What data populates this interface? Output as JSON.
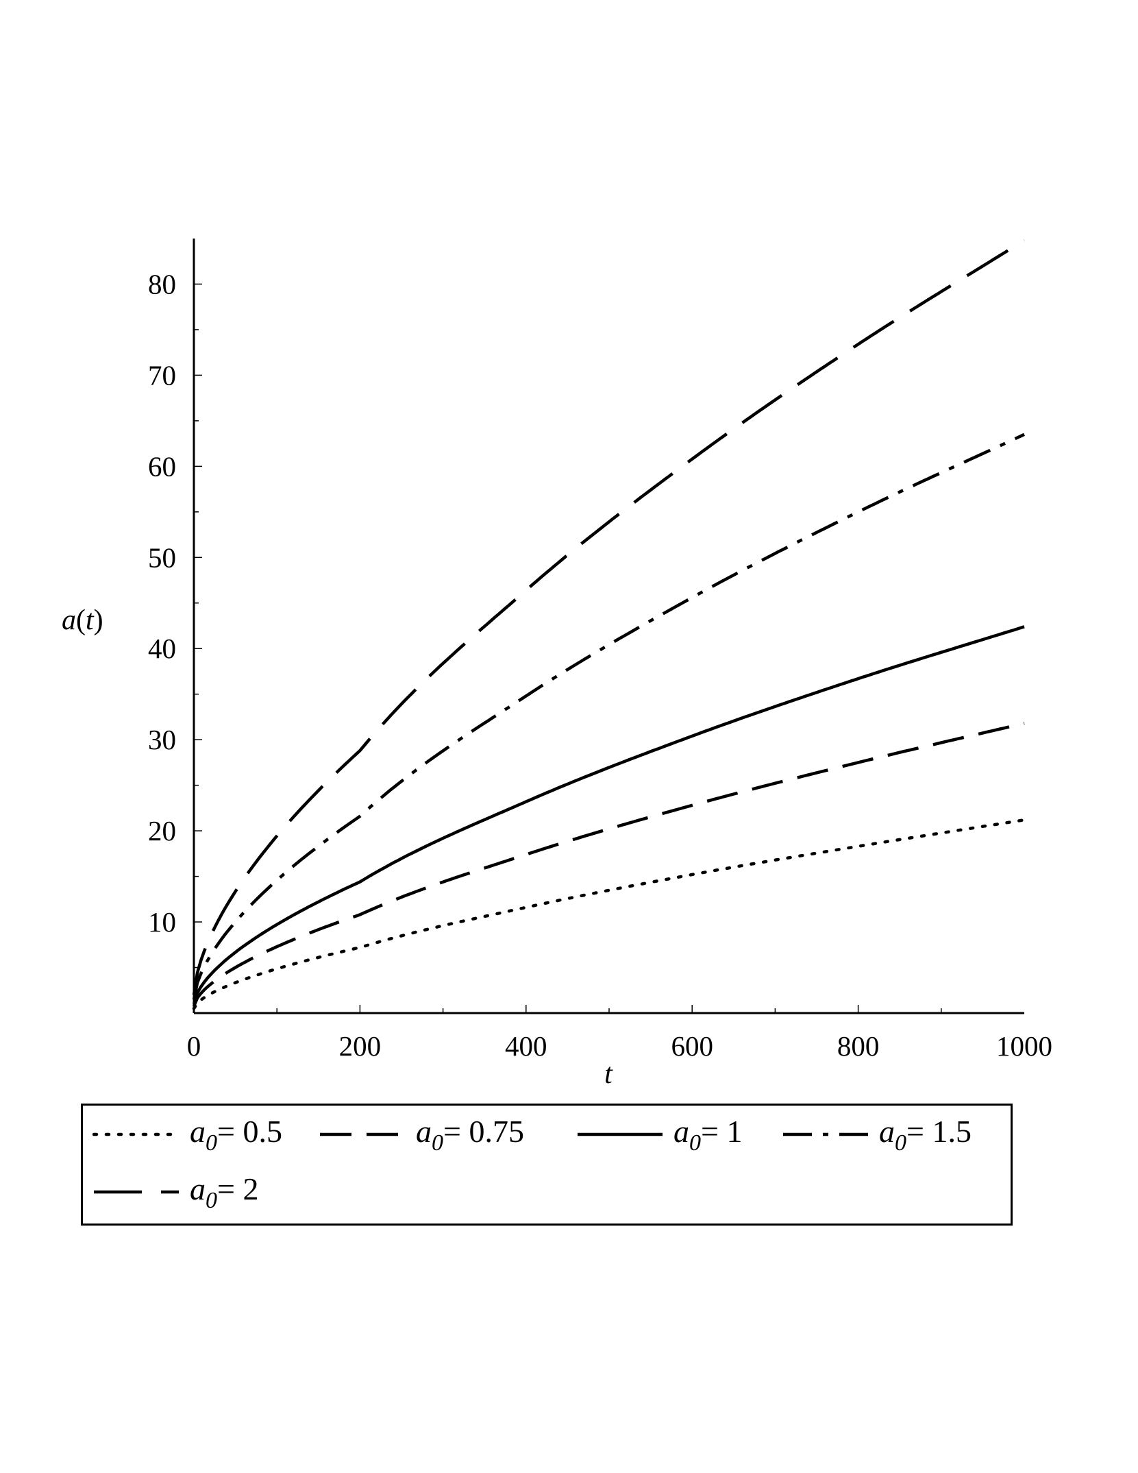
{
  "chart_data": {
    "type": "line",
    "xlabel": "t",
    "ylabel": "a(t)",
    "xlim": [
      0,
      1000
    ],
    "ylim": [
      0,
      85
    ],
    "xticks": [
      "0",
      "200",
      "400",
      "600",
      "800",
      "1000"
    ],
    "yticks": [
      "10",
      "20",
      "30",
      "40",
      "50",
      "60",
      "70",
      "80"
    ],
    "grid": false,
    "legend_position": "bottom",
    "series": [
      {
        "name": "a_0 = 0.5",
        "symbol": "a",
        "sub": "0",
        "value_text": "= 0.5",
        "style": "dotted",
        "x": [
          0,
          200,
          400,
          600,
          800,
          1000
        ],
        "y": [
          0.5,
          7.2,
          11.6,
          15.2,
          18.3,
          21.2
        ]
      },
      {
        "name": "a_0 = 0.75",
        "symbol": "a",
        "sub": "0",
        "value_text": "= 0.75",
        "style": "dashed",
        "x": [
          0,
          200,
          400,
          600,
          800,
          1000
        ],
        "y": [
          0.75,
          10.8,
          17.4,
          22.8,
          27.5,
          31.8
        ]
      },
      {
        "name": "a_0 = 1",
        "symbol": "a",
        "sub": "0",
        "value_text": "= 1",
        "style": "solid",
        "x": [
          0,
          200,
          400,
          600,
          800,
          1000
        ],
        "y": [
          1,
          14.4,
          23.2,
          30.4,
          36.7,
          42.4
        ]
      },
      {
        "name": "a_0 = 1.5",
        "symbol": "a",
        "sub": "0",
        "value_text": "= 1.5",
        "style": "dashdot",
        "x": [
          0,
          200,
          400,
          600,
          800,
          1000
        ],
        "y": [
          1.5,
          21.6,
          34.8,
          45.6,
          55.0,
          63.5
        ]
      },
      {
        "name": "a_0 = 2",
        "symbol": "a",
        "sub": "0",
        "value_text": "= 2",
        "style": "longdash",
        "x": [
          0,
          200,
          400,
          600,
          800,
          1000
        ],
        "y": [
          2,
          28.8,
          46.4,
          60.8,
          73.4,
          84.8
        ]
      }
    ]
  }
}
